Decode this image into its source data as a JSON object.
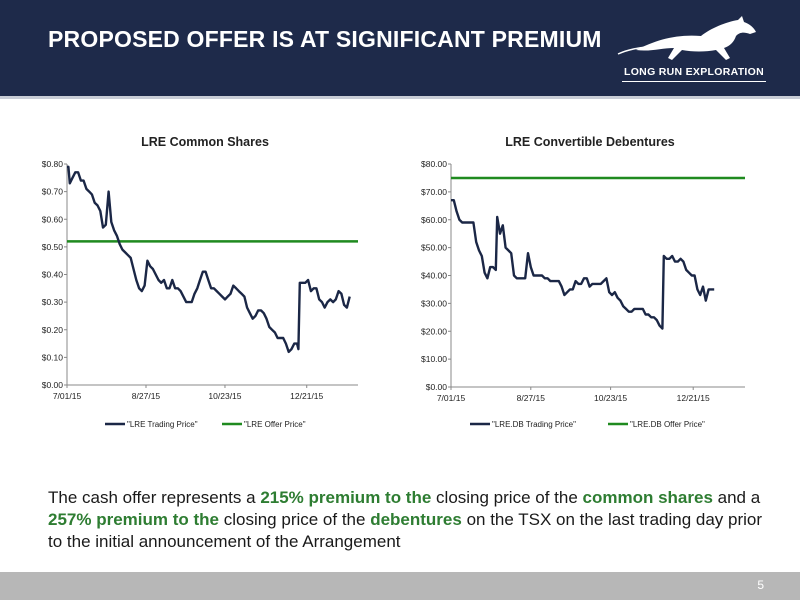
{
  "header": {
    "title": "PROPOSED OFFER IS AT SIGNIFICANT PREMIUM",
    "logo_text": "LONG RUN EXPLORATION"
  },
  "colors": {
    "header_bg": "#1e2a4a",
    "trading_line": "#1b2746",
    "offer_line": "#1f8a1f",
    "highlight": "#2e7d32"
  },
  "chart_data": [
    {
      "type": "line",
      "title": "LRE Common Shares",
      "x_tick_labels": [
        "7/01/15",
        "8/27/15",
        "10/23/15",
        "12/21/15"
      ],
      "x_days": [
        0,
        57,
        114,
        173
      ],
      "x_range_days": [
        0,
        210
      ],
      "y_range": [
        0,
        0.8
      ],
      "y_tick_labels": [
        "$0.00",
        "$0.10",
        "$0.20",
        "$0.30",
        "$0.40",
        "$0.50",
        "$0.60",
        "$0.70",
        "$0.80"
      ],
      "legend": [
        "\"LRE Trading Price\"",
        "\"LRE Offer Price\""
      ],
      "series": [
        {
          "name": "\"LRE Trading Price\"",
          "points": [
            [
              0,
              0.79
            ],
            [
              1,
              0.79
            ],
            [
              2,
              0.73
            ],
            [
              4,
              0.75
            ],
            [
              6,
              0.77
            ],
            [
              8,
              0.77
            ],
            [
              10,
              0.74
            ],
            [
              12,
              0.74
            ],
            [
              14,
              0.71
            ],
            [
              16,
              0.7
            ],
            [
              18,
              0.69
            ],
            [
              20,
              0.66
            ],
            [
              22,
              0.65
            ],
            [
              24,
              0.63
            ],
            [
              26,
              0.57
            ],
            [
              28,
              0.58
            ],
            [
              30,
              0.7
            ],
            [
              32,
              0.59
            ],
            [
              34,
              0.56
            ],
            [
              36,
              0.54
            ],
            [
              38,
              0.51
            ],
            [
              40,
              0.49
            ],
            [
              42,
              0.48
            ],
            [
              44,
              0.47
            ],
            [
              46,
              0.46
            ],
            [
              48,
              0.42
            ],
            [
              50,
              0.38
            ],
            [
              52,
              0.35
            ],
            [
              54,
              0.34
            ],
            [
              56,
              0.36
            ],
            [
              58,
              0.45
            ],
            [
              60,
              0.43
            ],
            [
              62,
              0.42
            ],
            [
              64,
              0.4
            ],
            [
              66,
              0.38
            ],
            [
              68,
              0.37
            ],
            [
              70,
              0.38
            ],
            [
              72,
              0.35
            ],
            [
              74,
              0.35
            ],
            [
              76,
              0.38
            ],
            [
              78,
              0.35
            ],
            [
              80,
              0.35
            ],
            [
              82,
              0.34
            ],
            [
              84,
              0.32
            ],
            [
              86,
              0.3
            ],
            [
              88,
              0.3
            ],
            [
              90,
              0.3
            ],
            [
              92,
              0.33
            ],
            [
              94,
              0.35
            ],
            [
              96,
              0.38
            ],
            [
              98,
              0.41
            ],
            [
              100,
              0.41
            ],
            [
              102,
              0.38
            ],
            [
              104,
              0.35
            ],
            [
              106,
              0.35
            ],
            [
              108,
              0.34
            ],
            [
              110,
              0.33
            ],
            [
              112,
              0.32
            ],
            [
              114,
              0.31
            ],
            [
              116,
              0.32
            ],
            [
              118,
              0.33
            ],
            [
              120,
              0.36
            ],
            [
              122,
              0.35
            ],
            [
              124,
              0.34
            ],
            [
              126,
              0.33
            ],
            [
              128,
              0.32
            ],
            [
              130,
              0.28
            ],
            [
              132,
              0.26
            ],
            [
              134,
              0.24
            ],
            [
              136,
              0.25
            ],
            [
              138,
              0.27
            ],
            [
              140,
              0.27
            ],
            [
              142,
              0.26
            ],
            [
              144,
              0.24
            ],
            [
              146,
              0.21
            ],
            [
              148,
              0.2
            ],
            [
              150,
              0.19
            ],
            [
              152,
              0.17
            ],
            [
              154,
              0.17
            ],
            [
              156,
              0.17
            ],
            [
              158,
              0.15
            ],
            [
              160,
              0.12
            ],
            [
              162,
              0.13
            ],
            [
              164,
              0.15
            ],
            [
              166,
              0.15
            ],
            [
              167,
              0.13
            ],
            [
              168,
              0.37
            ],
            [
              170,
              0.37
            ],
            [
              172,
              0.37
            ],
            [
              174,
              0.38
            ],
            [
              176,
              0.34
            ],
            [
              178,
              0.35
            ],
            [
              180,
              0.35
            ],
            [
              182,
              0.31
            ],
            [
              184,
              0.3
            ],
            [
              186,
              0.28
            ],
            [
              188,
              0.3
            ],
            [
              190,
              0.31
            ],
            [
              192,
              0.3
            ],
            [
              194,
              0.31
            ],
            [
              196,
              0.34
            ],
            [
              198,
              0.33
            ],
            [
              200,
              0.29
            ],
            [
              202,
              0.28
            ],
            [
              204,
              0.32
            ]
          ]
        },
        {
          "name": "\"LRE Offer Price\"",
          "value": 0.52
        }
      ]
    },
    {
      "type": "line",
      "title": "LRE Convertible Debentures",
      "x_tick_labels": [
        "7/01/15",
        "8/27/15",
        "10/23/15",
        "12/21/15"
      ],
      "x_days": [
        0,
        57,
        114,
        173
      ],
      "x_range_days": [
        0,
        210
      ],
      "y_range": [
        0,
        80
      ],
      "y_tick_labels": [
        "$0.00",
        "$10.00",
        "$20.00",
        "$30.00",
        "$40.00",
        "$50.00",
        "$60.00",
        "$70.00",
        "$80.00"
      ],
      "legend": [
        "\"LRE.DB Trading Price\"",
        "\"LRE.DB Offer Price\""
      ],
      "series": [
        {
          "name": "\"LRE.DB Trading Price\"",
          "points": [
            [
              0,
              67
            ],
            [
              2,
              67
            ],
            [
              4,
              63
            ],
            [
              6,
              60
            ],
            [
              8,
              59
            ],
            [
              10,
              59
            ],
            [
              12,
              59
            ],
            [
              14,
              59
            ],
            [
              16,
              59
            ],
            [
              18,
              52
            ],
            [
              20,
              49
            ],
            [
              22,
              47
            ],
            [
              24,
              41
            ],
            [
              26,
              39
            ],
            [
              28,
              43
            ],
            [
              30,
              43
            ],
            [
              32,
              42
            ],
            [
              33,
              61
            ],
            [
              35,
              55
            ],
            [
              37,
              58
            ],
            [
              39,
              50
            ],
            [
              41,
              49
            ],
            [
              43,
              48
            ],
            [
              45,
              40
            ],
            [
              47,
              39
            ],
            [
              49,
              39
            ],
            [
              51,
              39
            ],
            [
              53,
              39
            ],
            [
              55,
              48
            ],
            [
              57,
              43
            ],
            [
              59,
              40
            ],
            [
              61,
              40
            ],
            [
              63,
              40
            ],
            [
              65,
              40
            ],
            [
              67,
              39
            ],
            [
              69,
              39
            ],
            [
              71,
              38
            ],
            [
              73,
              38
            ],
            [
              75,
              38
            ],
            [
              77,
              38
            ],
            [
              79,
              36
            ],
            [
              81,
              33
            ],
            [
              83,
              34
            ],
            [
              85,
              35
            ],
            [
              87,
              35
            ],
            [
              89,
              38
            ],
            [
              91,
              37
            ],
            [
              93,
              37
            ],
            [
              95,
              39
            ],
            [
              97,
              39
            ],
            [
              99,
              36
            ],
            [
              101,
              37
            ],
            [
              103,
              37
            ],
            [
              105,
              37
            ],
            [
              107,
              37
            ],
            [
              109,
              38
            ],
            [
              111,
              39
            ],
            [
              113,
              34
            ],
            [
              115,
              33
            ],
            [
              117,
              34
            ],
            [
              119,
              32
            ],
            [
              121,
              31
            ],
            [
              123,
              29
            ],
            [
              125,
              28
            ],
            [
              127,
              27
            ],
            [
              129,
              27
            ],
            [
              131,
              28
            ],
            [
              133,
              28
            ],
            [
              135,
              28
            ],
            [
              137,
              28
            ],
            [
              139,
              26
            ],
            [
              141,
              26
            ],
            [
              143,
              25
            ],
            [
              145,
              25
            ],
            [
              147,
              24
            ],
            [
              149,
              22
            ],
            [
              151,
              21
            ],
            [
              152,
              47
            ],
            [
              154,
              46
            ],
            [
              156,
              46
            ],
            [
              158,
              47
            ],
            [
              160,
              45
            ],
            [
              162,
              45
            ],
            [
              164,
              46
            ],
            [
              166,
              45
            ],
            [
              168,
              42
            ],
            [
              170,
              41
            ],
            [
              172,
              40
            ],
            [
              174,
              40
            ],
            [
              176,
              35
            ],
            [
              178,
              33
            ],
            [
              180,
              36
            ],
            [
              182,
              31
            ],
            [
              184,
              35
            ],
            [
              186,
              35
            ],
            [
              188,
              35
            ]
          ]
        },
        {
          "name": "\"LRE.DB Offer Price\"",
          "value": 75
        }
      ]
    }
  ],
  "body": {
    "p1": "The cash offer represents a ",
    "h1": "215% premium to the",
    "p2": " closing price of the ",
    "h2": "common shares",
    "p3": " and a ",
    "h3": "257% premium to the",
    "p4": " closing price of the ",
    "h4": "debentures",
    "p5": " on the TSX on the last trading day prior to the initial announcement of the Arrangement"
  },
  "footer": {
    "page_number": "5"
  }
}
